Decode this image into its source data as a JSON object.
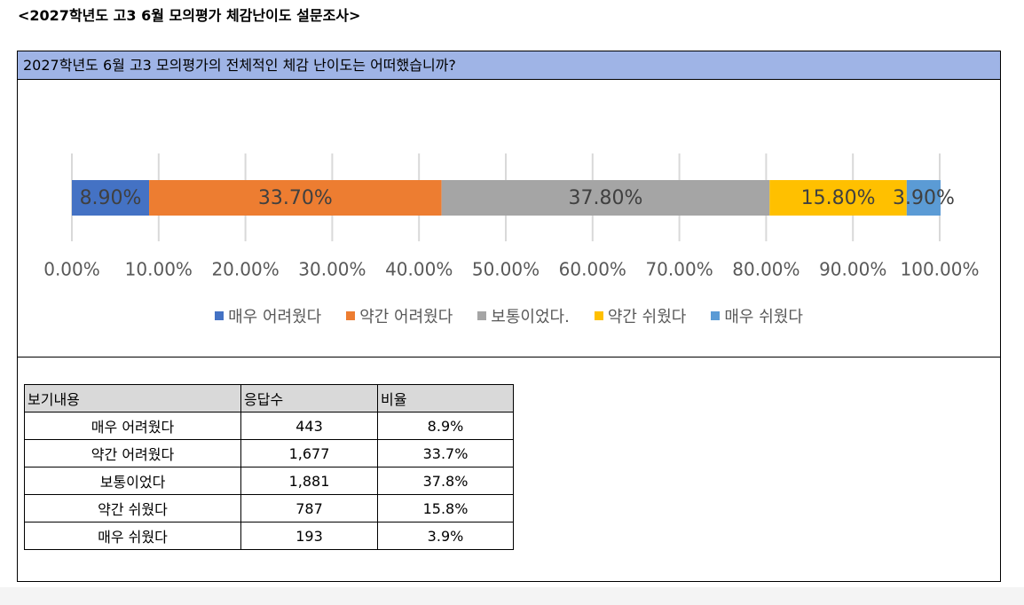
{
  "title": "<2027학년도 고3 6월 모의평가 체감난이도 설문조사>",
  "chart_data": {
    "type": "stacked_bar",
    "title": "2027학년도 6월 고3 모의평가의 전체적인 체감 난이도는 어떠했습니까?",
    "series": [
      {
        "name": "매우 어려웠다",
        "color": "#4472c4",
        "values": [
          8.9
        ],
        "value_labels": [
          "8.90%"
        ]
      },
      {
        "name": "약간 어려웠다",
        "color": "#ed7d31",
        "values": [
          33.7
        ],
        "value_labels": [
          "33.70%"
        ]
      },
      {
        "name": "보통이었다.",
        "color": "#a5a5a5",
        "values": [
          37.8
        ],
        "value_labels": [
          "37.80%"
        ]
      },
      {
        "name": "약간 쉬웠다",
        "color": "#ffc000",
        "values": [
          15.8
        ],
        "value_labels": [
          "15.80%"
        ]
      },
      {
        "name": "매우 쉬웠다",
        "color": "#5b9bd5",
        "values": [
          3.9
        ],
        "value_labels": [
          "3.90%"
        ]
      }
    ],
    "xlim": [
      0,
      100
    ],
    "xticks": [
      {
        "value": 0,
        "label": "0.00%"
      },
      {
        "value": 10,
        "label": "10.00%"
      },
      {
        "value": 20,
        "label": "20.00%"
      },
      {
        "value": 30,
        "label": "30.00%"
      },
      {
        "value": 40,
        "label": "40.00%"
      },
      {
        "value": 50,
        "label": "50.00%"
      },
      {
        "value": 60,
        "label": "60.00%"
      },
      {
        "value": 70,
        "label": "70.00%"
      },
      {
        "value": 80,
        "label": "80.00%"
      },
      {
        "value": 90,
        "label": "90.00%"
      },
      {
        "value": 100,
        "label": "100.00%"
      }
    ],
    "grid": true,
    "legend": "bottom"
  },
  "table": {
    "header": [
      "보기내용",
      "응답수",
      "비율"
    ],
    "rows": [
      [
        "매우 어려웠다",
        "443",
        "8.9%"
      ],
      [
        "약간 어려웠다",
        "1,677",
        "33.7%"
      ],
      [
        "보통이었다",
        "1,881",
        "37.8%"
      ],
      [
        "약간 쉬웠다",
        "787",
        "15.8%"
      ],
      [
        "매우 쉬웠다",
        "193",
        "3.9%"
      ]
    ]
  }
}
